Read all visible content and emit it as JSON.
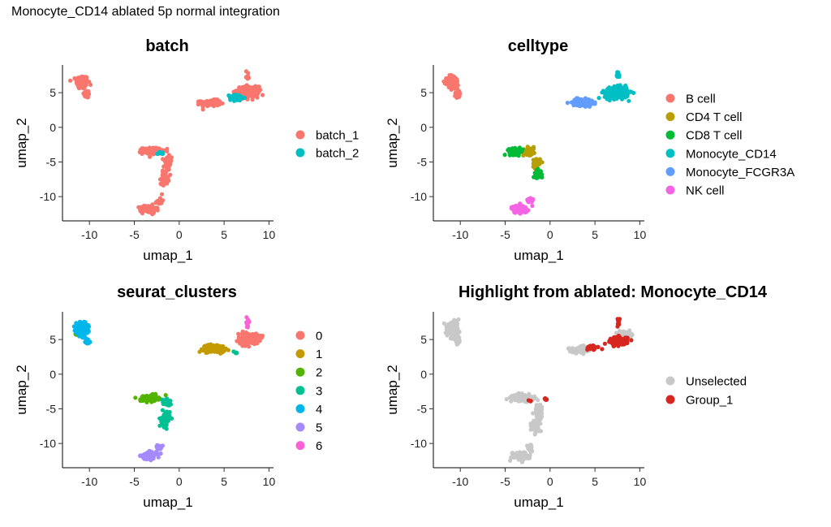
{
  "figure": {
    "title": "Monocyte_CD14 ablated 5p normal integration"
  },
  "chart_data": [
    {
      "type": "scatter",
      "title": "batch",
      "xlabel": "umap_1",
      "ylabel": "umap_2",
      "xlim": [
        -13,
        10.5
      ],
      "ylim": [
        -13.5,
        9
      ],
      "xticks": [
        -10,
        -5,
        0,
        5,
        10
      ],
      "yticks": [
        5,
        0,
        -5,
        -10
      ],
      "grid": false,
      "legend_position": "right",
      "legend": [
        "batch_1",
        "batch_2"
      ],
      "colors": [
        "#F8766D",
        "#00BFC4"
      ],
      "clusters": [
        {
          "group": 0,
          "cx": -10.8,
          "cy": 6.5,
          "sx": 0.6,
          "sy": 0.9,
          "n": 140
        },
        {
          "group": 0,
          "cx": -10.3,
          "cy": 4.8,
          "sx": 0.3,
          "sy": 0.5,
          "n": 30
        },
        {
          "group": 0,
          "cx": 3.5,
          "cy": 3.5,
          "sx": 1.0,
          "sy": 0.4,
          "n": 110
        },
        {
          "group": 0,
          "cx": 7.6,
          "cy": 5.1,
          "sx": 1.1,
          "sy": 0.7,
          "n": 240
        },
        {
          "group": 1,
          "cx": 6.4,
          "cy": 4.3,
          "sx": 0.7,
          "sy": 0.4,
          "n": 60
        },
        {
          "group": 0,
          "cx": 7.6,
          "cy": 7.5,
          "sx": 0.15,
          "sy": 0.6,
          "n": 12
        },
        {
          "group": 0,
          "cx": -3.0,
          "cy": -3.4,
          "sx": 1.0,
          "sy": 0.4,
          "n": 140
        },
        {
          "group": 0,
          "cx": -1.3,
          "cy": -5.2,
          "sx": 0.4,
          "sy": 1.0,
          "n": 60
        },
        {
          "group": 0,
          "cx": -1.6,
          "cy": -7.3,
          "sx": 0.4,
          "sy": 0.8,
          "n": 50
        },
        {
          "group": 0,
          "cx": -3.4,
          "cy": -11.8,
          "sx": 0.8,
          "sy": 0.5,
          "n": 110
        },
        {
          "group": 0,
          "cx": -2.2,
          "cy": -10.6,
          "sx": 0.3,
          "sy": 0.5,
          "n": 18
        },
        {
          "group": 1,
          "cx": -2.0,
          "cy": -3.8,
          "sx": 0.3,
          "sy": 0.3,
          "n": 8
        }
      ]
    },
    {
      "type": "scatter",
      "title": "celltype",
      "xlabel": "umap_1",
      "ylabel": "umap_2",
      "xlim": [
        -13,
        10.5
      ],
      "ylim": [
        -13.5,
        9
      ],
      "xticks": [
        -10,
        -5,
        0,
        5,
        10
      ],
      "yticks": [
        5,
        0,
        -5,
        -10
      ],
      "grid": false,
      "legend_position": "right",
      "legend": [
        "B cell",
        "CD4 T cell",
        "CD8 T cell",
        "Monocyte_CD14",
        "Monocyte_FCGR3A",
        "NK cell"
      ],
      "colors": [
        "#F8766D",
        "#B79F00",
        "#00BA38",
        "#00BFC4",
        "#619CFF",
        "#F564E3"
      ],
      "clusters": [
        {
          "group": 0,
          "cx": -10.8,
          "cy": 6.5,
          "sx": 0.6,
          "sy": 0.9,
          "n": 140
        },
        {
          "group": 0,
          "cx": -10.3,
          "cy": 4.8,
          "sx": 0.3,
          "sy": 0.5,
          "n": 30
        },
        {
          "group": 4,
          "cx": 3.6,
          "cy": 3.6,
          "sx": 1.0,
          "sy": 0.45,
          "n": 120
        },
        {
          "group": 3,
          "cx": 7.4,
          "cy": 5.0,
          "sx": 1.2,
          "sy": 0.75,
          "n": 260
        },
        {
          "group": 3,
          "cx": 7.6,
          "cy": 7.5,
          "sx": 0.15,
          "sy": 0.6,
          "n": 12
        },
        {
          "group": 2,
          "cx": -3.8,
          "cy": -3.5,
          "sx": 0.7,
          "sy": 0.4,
          "n": 80
        },
        {
          "group": 1,
          "cx": -2.3,
          "cy": -3.4,
          "sx": 0.6,
          "sy": 0.5,
          "n": 70
        },
        {
          "group": 1,
          "cx": -1.5,
          "cy": -5.2,
          "sx": 0.35,
          "sy": 0.7,
          "n": 30
        },
        {
          "group": 2,
          "cx": -1.4,
          "cy": -6.8,
          "sx": 0.4,
          "sy": 0.6,
          "n": 35
        },
        {
          "group": 5,
          "cx": -3.4,
          "cy": -11.8,
          "sx": 0.8,
          "sy": 0.5,
          "n": 110
        },
        {
          "group": 5,
          "cx": -2.2,
          "cy": -10.6,
          "sx": 0.3,
          "sy": 0.5,
          "n": 18
        }
      ]
    },
    {
      "type": "scatter",
      "title": "seurat_clusters",
      "xlabel": "umap_1",
      "ylabel": "umap_2",
      "xlim": [
        -13,
        10.5
      ],
      "ylim": [
        -13.5,
        9
      ],
      "xticks": [
        -10,
        -5,
        0,
        5,
        10
      ],
      "yticks": [
        5,
        0,
        -5,
        -10
      ],
      "grid": false,
      "legend_position": "right",
      "legend": [
        "0",
        "1",
        "2",
        "3",
        "4",
        "5",
        "6"
      ],
      "colors": [
        "#F8766D",
        "#C49A00",
        "#53B400",
        "#00C094",
        "#00B6EB",
        "#A58AFF",
        "#FB61D7"
      ],
      "clusters": [
        {
          "group": 4,
          "cx": -10.8,
          "cy": 6.5,
          "sx": 0.6,
          "sy": 0.9,
          "n": 140
        },
        {
          "group": 4,
          "cx": -10.3,
          "cy": 4.8,
          "sx": 0.3,
          "sy": 0.5,
          "n": 30
        },
        {
          "group": 2,
          "cx": -11.4,
          "cy": 5.8,
          "sx": 0.15,
          "sy": 0.2,
          "n": 5
        },
        {
          "group": 1,
          "cx": 3.9,
          "cy": 3.7,
          "sx": 1.1,
          "sy": 0.5,
          "n": 140
        },
        {
          "group": 0,
          "cx": 7.7,
          "cy": 5.1,
          "sx": 1.0,
          "sy": 0.7,
          "n": 240
        },
        {
          "group": 6,
          "cx": 7.6,
          "cy": 7.5,
          "sx": 0.15,
          "sy": 0.6,
          "n": 14
        },
        {
          "group": 3,
          "cx": 6.3,
          "cy": 3.1,
          "sx": 0.2,
          "sy": 0.2,
          "n": 4
        },
        {
          "group": 2,
          "cx": -3.3,
          "cy": -3.5,
          "sx": 0.9,
          "sy": 0.4,
          "n": 130
        },
        {
          "group": 3,
          "cx": -1.5,
          "cy": -4.0,
          "sx": 0.4,
          "sy": 0.5,
          "n": 30
        },
        {
          "group": 3,
          "cx": -1.5,
          "cy": -6.5,
          "sx": 0.4,
          "sy": 1.0,
          "n": 70
        },
        {
          "group": 5,
          "cx": -3.4,
          "cy": -11.8,
          "sx": 0.8,
          "sy": 0.5,
          "n": 110
        },
        {
          "group": 5,
          "cx": -2.2,
          "cy": -10.6,
          "sx": 0.3,
          "sy": 0.5,
          "n": 18
        }
      ]
    },
    {
      "type": "scatter",
      "title": "Highlight from ablated: Monocyte_CD14",
      "xlabel": "umap_1",
      "ylabel": "umap_2",
      "xlim": [
        -13,
        10.5
      ],
      "ylim": [
        -13.5,
        9
      ],
      "xticks": [
        -10,
        -5,
        0,
        5,
        10
      ],
      "yticks": [
        5,
        0,
        -5,
        -10
      ],
      "grid": false,
      "legend_position": "right",
      "legend": [
        "Unselected",
        "Group_1"
      ],
      "colors": [
        "#C8C8C8",
        "#D7261E"
      ],
      "clusters": [
        {
          "group": 0,
          "cx": -10.8,
          "cy": 6.5,
          "sx": 0.6,
          "sy": 0.9,
          "n": 140
        },
        {
          "group": 0,
          "cx": -10.3,
          "cy": 4.8,
          "sx": 0.3,
          "sy": 0.5,
          "n": 30
        },
        {
          "group": 0,
          "cx": 3.5,
          "cy": 3.5,
          "sx": 1.0,
          "sy": 0.4,
          "n": 110
        },
        {
          "group": 0,
          "cx": 8.5,
          "cy": 5.6,
          "sx": 0.7,
          "sy": 0.5,
          "n": 60
        },
        {
          "group": 1,
          "cx": 7.7,
          "cy": 4.8,
          "sx": 0.8,
          "sy": 0.5,
          "n": 200
        },
        {
          "group": 1,
          "cx": 5.0,
          "cy": 3.8,
          "sx": 1.2,
          "sy": 0.3,
          "n": 14
        },
        {
          "group": 1,
          "cx": 7.6,
          "cy": 7.5,
          "sx": 0.15,
          "sy": 0.6,
          "n": 12
        },
        {
          "group": 0,
          "cx": -3.0,
          "cy": -3.4,
          "sx": 1.0,
          "sy": 0.4,
          "n": 140
        },
        {
          "group": 0,
          "cx": -1.3,
          "cy": -5.2,
          "sx": 0.4,
          "sy": 1.0,
          "n": 60
        },
        {
          "group": 0,
          "cx": -1.6,
          "cy": -7.3,
          "sx": 0.4,
          "sy": 0.8,
          "n": 50
        },
        {
          "group": 0,
          "cx": -3.4,
          "cy": -11.8,
          "sx": 0.8,
          "sy": 0.5,
          "n": 110
        },
        {
          "group": 0,
          "cx": -2.2,
          "cy": -10.6,
          "sx": 0.3,
          "sy": 0.5,
          "n": 18
        },
        {
          "group": 1,
          "cx": -0.5,
          "cy": -3.6,
          "sx": 0.15,
          "sy": 0.12,
          "n": 5
        },
        {
          "group": 1,
          "cx": -2.2,
          "cy": -3.9,
          "sx": 0.2,
          "sy": 0.2,
          "n": 3
        }
      ]
    }
  ]
}
